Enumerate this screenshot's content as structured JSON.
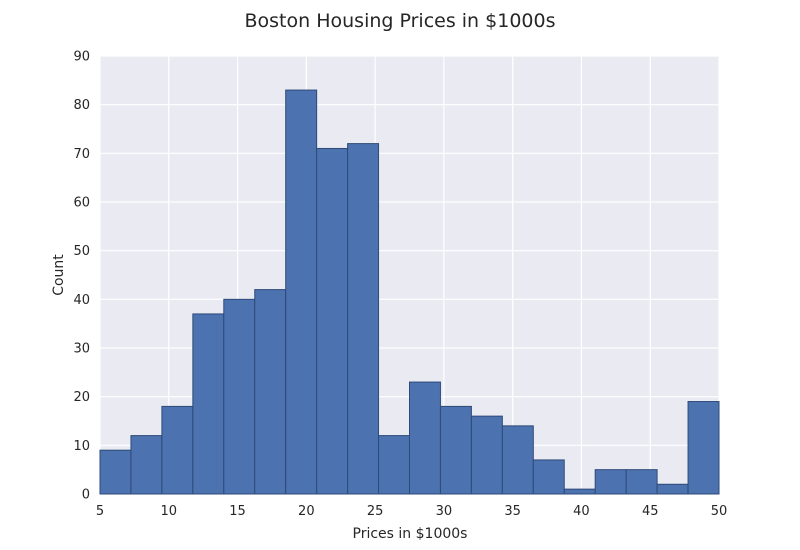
{
  "chart_data": {
    "type": "histogram",
    "title": "Boston Housing Prices in $1000s",
    "xlabel": "Prices in $1000s",
    "ylabel": "Count",
    "xlim": [
      5,
      50
    ],
    "ylim": [
      0,
      90
    ],
    "xticks": [
      5,
      10,
      15,
      20,
      25,
      30,
      35,
      40,
      45,
      50
    ],
    "yticks": [
      0,
      10,
      20,
      30,
      40,
      50,
      60,
      70,
      80,
      90
    ],
    "bins": [
      5.0,
      7.25,
      9.5,
      11.75,
      14.0,
      16.25,
      18.5,
      20.75,
      23.0,
      25.25,
      27.5,
      29.75,
      32.0,
      34.25,
      36.5,
      38.75,
      41.0,
      43.25,
      45.5,
      47.75,
      50.0
    ],
    "counts": [
      9,
      12,
      18,
      37,
      40,
      42,
      83,
      71,
      72,
      12,
      23,
      18,
      16,
      14,
      7,
      1,
      5,
      5,
      2,
      19
    ],
    "grid": true,
    "colors": {
      "bar_fill": "#4c72b0",
      "bar_edge": "#2e4a78",
      "plot_bg": "#eaeaf2",
      "grid": "#ffffff",
      "text": "#262626"
    }
  }
}
